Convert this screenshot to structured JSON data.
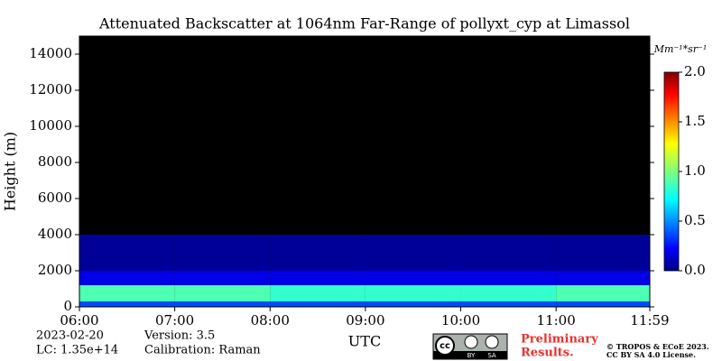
{
  "chart_data": {
    "type": "heatmap",
    "title": "Attenuated Backscatter at 1064nm Far-Range of pollyxt_cyp at Limassol",
    "y_label": "Height (m)",
    "x_label": "UTC",
    "x_bins": [
      6,
      7,
      8,
      9,
      10,
      11,
      11.983
    ],
    "y_bins": [
      0,
      300,
      1200,
      2000,
      4000,
      15000
    ],
    "z": [
      [
        0.4,
        0.4,
        0.4,
        0.4,
        0.4,
        0.4
      ],
      [
        0.9,
        0.9,
        0.85,
        0.85,
        0.85,
        0.9
      ],
      [
        0.2,
        0.2,
        0.2,
        0.2,
        0.2,
        0.2
      ],
      [
        0.05,
        0.05,
        0.05,
        0.05,
        0.05,
        0.05
      ],
      [
        null,
        null,
        null,
        null,
        null,
        null
      ]
    ],
    "xlim": [
      6,
      11.983
    ],
    "xticks": [
      {
        "value": 6,
        "label": "06:00"
      },
      {
        "value": 7,
        "label": "07:00"
      },
      {
        "value": 8,
        "label": "08:00"
      },
      {
        "value": 9,
        "label": "09:00"
      },
      {
        "value": 10,
        "label": "10:00"
      },
      {
        "value": 11,
        "label": "11:00"
      },
      {
        "value": 11.983,
        "label": "11:59"
      }
    ],
    "ylim": [
      0,
      15000
    ],
    "yticks": [
      0,
      2000,
      4000,
      6000,
      8000,
      10000,
      12000,
      14000
    ],
    "colormap": "jet",
    "colorbar_label": "Mm⁻¹*sr⁻¹",
    "clim": [
      0,
      2
    ],
    "cticks": [
      {
        "value": 0,
        "label": "0.0"
      },
      {
        "value": 0.5,
        "label": "0.5"
      },
      {
        "value": 1,
        "label": "1.0"
      },
      {
        "value": 1.5,
        "label": "1.5"
      },
      {
        "value": 2,
        "label": "2.0"
      }
    ],
    "date": "2023-02-20",
    "lc": "LC: 1.35e+14",
    "version": "Version: 3.5",
    "calibration": "Calibration: Raman",
    "license_badge": [
      "cc",
      "BY",
      "SA"
    ],
    "preliminary": [
      "Preliminary",
      "Results."
    ],
    "copyright": [
      "© TROPOS & ECoE 2023.",
      "CC BY SA 4.0 License."
    ]
  }
}
